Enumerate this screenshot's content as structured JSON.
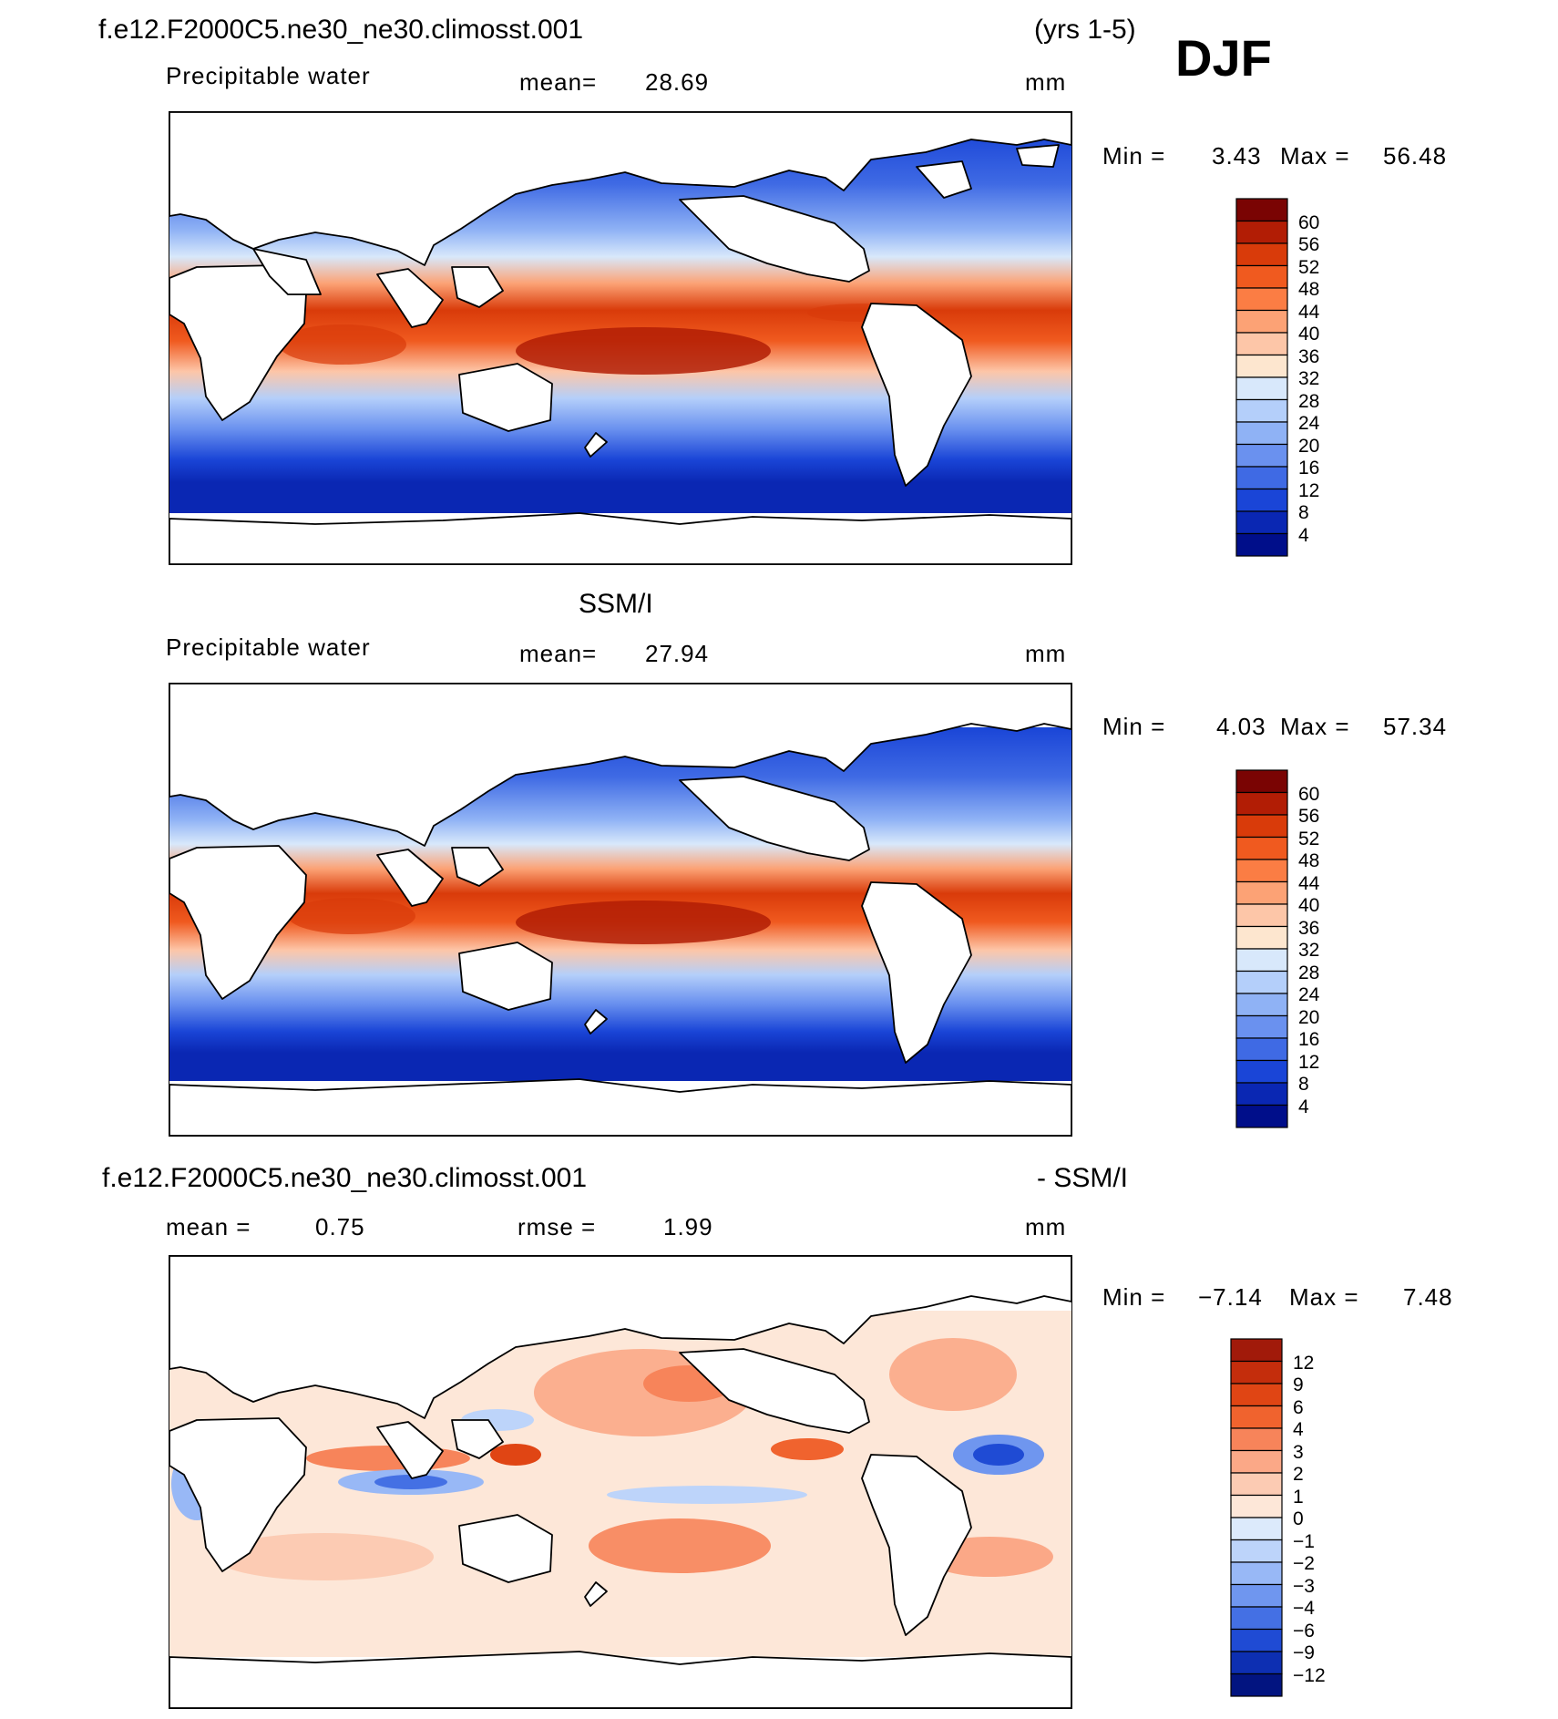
{
  "title_left": "f.e12.F2000C5.ne30_ne30.climosst.001",
  "title_years": "(yrs 1-5)",
  "season": "DJF",
  "panels": [
    {
      "id": "model",
      "field": "Precipitable water",
      "mean_label": "mean=",
      "mean_value": "28.69",
      "units": "mm",
      "min_label": "Min =",
      "min_value": "3.43",
      "max_label": "Max =",
      "max_value": "56.48",
      "colorbar": {
        "labels": [
          "60",
          "56",
          "52",
          "48",
          "44",
          "40",
          "36",
          "32",
          "28",
          "24",
          "20",
          "16",
          "12",
          "8",
          "4"
        ],
        "colors": [
          "#7a0403",
          "#b21d05",
          "#d93b0a",
          "#f05a1f",
          "#fb7d44",
          "#fca275",
          "#fdc6a8",
          "#fde6cf",
          "#d8e8fb",
          "#b4cffa",
          "#8fb2f5",
          "#6a91ef",
          "#3f6ae4",
          "#1a45d7",
          "#0a27b3",
          "#000e8a"
        ]
      }
    },
    {
      "id": "obs",
      "heading": "SSM/I",
      "field": "Precipitable water",
      "mean_label": "mean=",
      "mean_value": "27.94",
      "units": "mm",
      "min_label": "Min =",
      "min_value": "4.03",
      "max_label": "Max =",
      "max_value": "57.34",
      "colorbar": {
        "labels": [
          "60",
          "56",
          "52",
          "48",
          "44",
          "40",
          "36",
          "32",
          "28",
          "24",
          "20",
          "16",
          "12",
          "8",
          "4"
        ],
        "colors": [
          "#7a0403",
          "#b21d05",
          "#d93b0a",
          "#f05a1f",
          "#fb7d44",
          "#fca275",
          "#fdc6a8",
          "#fde6cf",
          "#d8e8fb",
          "#b4cffa",
          "#8fb2f5",
          "#6a91ef",
          "#3f6ae4",
          "#1a45d7",
          "#0a27b3",
          "#000e8a"
        ]
      }
    },
    {
      "id": "diff",
      "heading_left": "f.e12.F2000C5.ne30_ne30.climosst.001",
      "heading_right": "- SSM/I",
      "mean_label": "mean =",
      "mean_value": "0.75",
      "rmse_label": "rmse =",
      "rmse_value": "1.99",
      "units": "mm",
      "min_label": "Min =",
      "min_value": "−7.14",
      "max_label": "Max =",
      "max_value": "7.48",
      "colorbar": {
        "labels": [
          "12",
          "9",
          "6",
          "4",
          "3",
          "2",
          "1",
          "0",
          "−1",
          "−2",
          "−3",
          "−4",
          "−6",
          "−9",
          "−12"
        ],
        "colors": [
          "#a11a0a",
          "#c42d0c",
          "#e04514",
          "#f0632e",
          "#f7845a",
          "#fba887",
          "#fccbb3",
          "#fde7d8",
          "#dceafb",
          "#bdd4fa",
          "#98b8f6",
          "#6f96ef",
          "#4470e4",
          "#1f4bd4",
          "#0d2fb2",
          "#021480"
        ]
      }
    }
  ]
}
